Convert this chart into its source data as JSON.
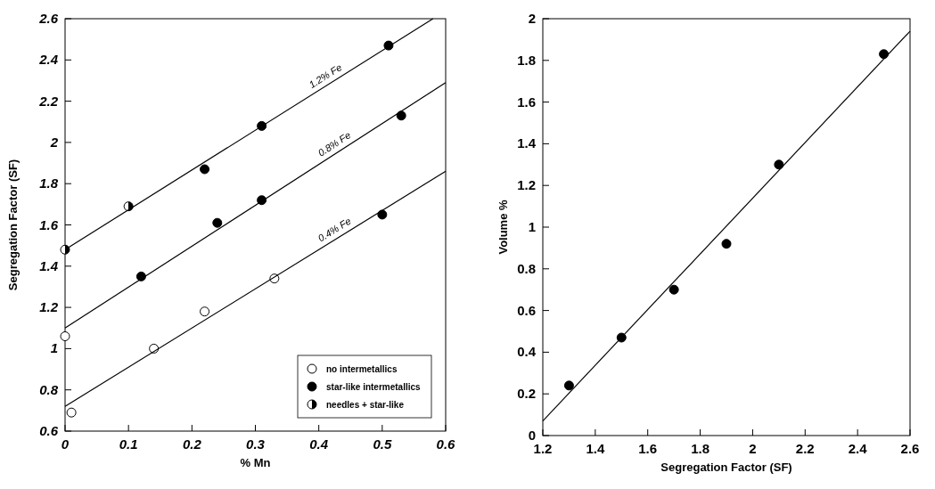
{
  "chart_data": [
    {
      "type": "scatter",
      "xlabel": "% Mn",
      "ylabel": "Segregation Factor (SF)",
      "xlim": [
        0,
        0.6
      ],
      "ylim": [
        0.6,
        2.6
      ],
      "xticks": [
        0,
        0.1,
        0.2,
        0.3,
        0.4,
        0.5,
        0.6
      ],
      "yticks": [
        0.6,
        0.8,
        1,
        1.2,
        1.4,
        1.6,
        1.8,
        2,
        2.2,
        2.4,
        2.6
      ],
      "grid": false,
      "legend": "bottom right",
      "series": [
        {
          "name": "no intermetallics",
          "marker": "circle",
          "color": "#ffffff",
          "x": [
            0,
            0.01,
            0.14,
            0.22,
            0.33
          ],
          "values": [
            1.06,
            0.69,
            1.0,
            1.18,
            1.34
          ]
        },
        {
          "name": "star-like intermetallics",
          "marker": "circle",
          "color": "#000000",
          "x": [
            0.12,
            0.22,
            0.24,
            0.31,
            0.31,
            0.5,
            0.51,
            0.53
          ],
          "values": [
            1.35,
            1.87,
            1.61,
            1.72,
            2.08,
            1.65,
            2.47,
            2.13
          ]
        },
        {
          "name": "needles + star-like",
          "marker": "half-circle",
          "color": "#000000",
          "x": [
            0,
            0.1
          ],
          "values": [
            1.48,
            1.69
          ]
        },
        {
          "name": "1.2% Fe",
          "type": "line",
          "color": "#000000",
          "x": [
            0,
            0.58
          ],
          "values": [
            1.48,
            2.6
          ]
        },
        {
          "name": "0.8% Fe",
          "type": "line",
          "color": "#000000",
          "x": [
            0,
            0.6
          ],
          "values": [
            1.1,
            2.29
          ]
        },
        {
          "name": "0.4% Fe",
          "type": "line",
          "color": "#000000",
          "x": [
            0,
            0.6
          ],
          "values": [
            0.72,
            1.86
          ]
        }
      ]
    },
    {
      "type": "scatter",
      "xlabel": "Segregation Factor (SF)",
      "ylabel": "Volume %",
      "xlim": [
        1.2,
        2.6
      ],
      "ylim": [
        0,
        2
      ],
      "xticks": [
        1.2,
        1.4,
        1.6,
        1.8,
        2,
        2.2,
        2.4,
        2.6
      ],
      "yticks": [
        0,
        0.2,
        0.4,
        0.6,
        0.8,
        1,
        1.2,
        1.4,
        1.6,
        1.8,
        2
      ],
      "grid": false,
      "series": [
        {
          "marker": "circle",
          "color": "#000000",
          "x": [
            1.3,
            1.5,
            1.7,
            1.9,
            2.1,
            2.5
          ],
          "values": [
            0.24,
            0.47,
            0.7,
            0.92,
            1.3,
            1.83
          ]
        },
        {
          "type": "line",
          "color": "#000000",
          "x": [
            1.2,
            2.6
          ],
          "values": [
            0.07,
            1.94
          ]
        }
      ]
    }
  ]
}
